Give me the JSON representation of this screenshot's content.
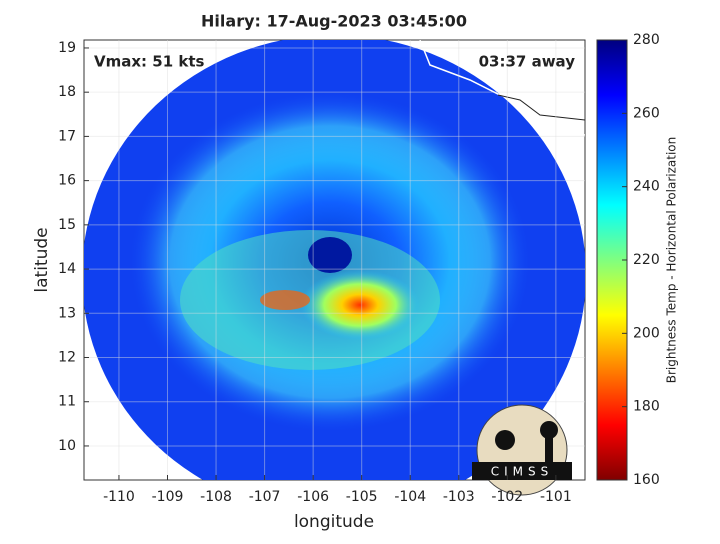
{
  "map": {
    "title": "Hilary: 17-Aug-2023 03:45:00",
    "xlabel": "longitude",
    "ylabel": "latitude",
    "xlim": [
      -110.72,
      -100.4
    ],
    "xticks": [
      -110,
      -109,
      -108,
      -107,
      -106,
      -105,
      -104,
      -103,
      -102,
      -101
    ],
    "ylim": [
      9.23,
      19.18
    ],
    "yticks": [
      10,
      11,
      12,
      13,
      14,
      15,
      16,
      17,
      18,
      19
    ],
    "annotations": {
      "vmax": "Vmax: 51 kts",
      "time_away": "03:37 away"
    },
    "colorbar": {
      "label": "Brightness Temp - Horizontal Polarization",
      "lim": [
        160,
        280
      ],
      "ticks": [
        160,
        180,
        200,
        220,
        240,
        260,
        280
      ]
    },
    "logo": "CIMSS"
  }
}
